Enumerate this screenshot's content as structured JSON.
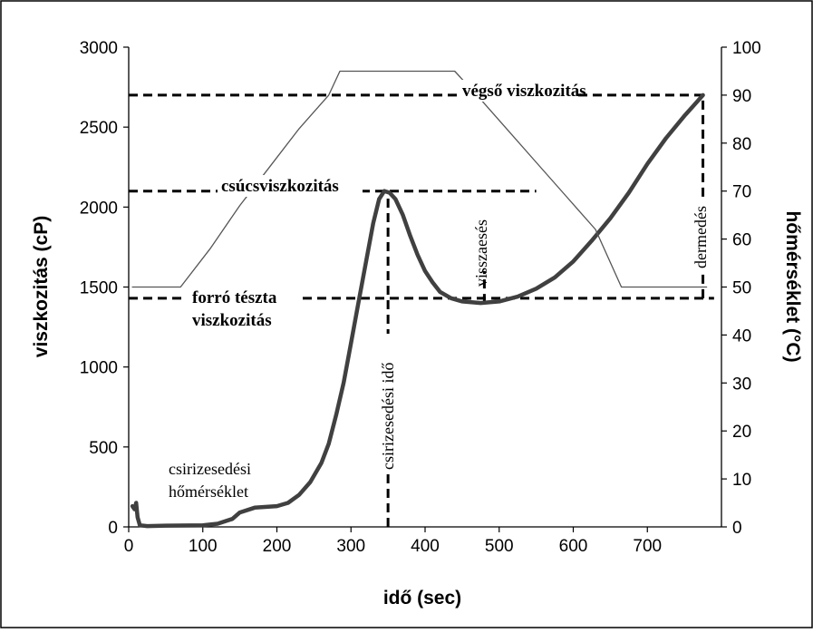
{
  "chart_data": {
    "type": "line",
    "xlabel": "idő (sec)",
    "ylabel": "viszkozitás (cP)",
    "y2label": "hőmérséklet (°C)",
    "xlim": [
      0,
      800
    ],
    "ylim": [
      0,
      3000
    ],
    "y2lim": [
      0,
      100
    ],
    "x_ticks": [
      "0",
      "100",
      "200",
      "300",
      "400",
      "500",
      "600",
      "700"
    ],
    "y_ticks": [
      "0",
      "500",
      "1000",
      "1500",
      "2000",
      "2500",
      "3000"
    ],
    "y2_ticks": [
      "0",
      "10",
      "20",
      "30",
      "40",
      "50",
      "60",
      "70",
      "80",
      "90",
      "100"
    ],
    "grid": false,
    "series": [
      {
        "axis": "left",
        "color": "#404040",
        "points": [
          [
            5,
            130
          ],
          [
            8,
            110
          ],
          [
            10,
            150
          ],
          [
            12,
            60
          ],
          [
            15,
            10
          ],
          [
            25,
            5
          ],
          [
            50,
            8
          ],
          [
            100,
            10
          ],
          [
            120,
            20
          ],
          [
            140,
            50
          ],
          [
            150,
            90
          ],
          [
            170,
            120
          ],
          [
            200,
            130
          ],
          [
            215,
            150
          ],
          [
            230,
            200
          ],
          [
            245,
            280
          ],
          [
            260,
            400
          ],
          [
            270,
            520
          ],
          [
            280,
            700
          ],
          [
            290,
            900
          ],
          [
            300,
            1150
          ],
          [
            310,
            1400
          ],
          [
            320,
            1650
          ],
          [
            330,
            1900
          ],
          [
            338,
            2050
          ],
          [
            345,
            2100
          ],
          [
            352,
            2090
          ],
          [
            360,
            2050
          ],
          [
            370,
            1950
          ],
          [
            380,
            1820
          ],
          [
            390,
            1700
          ],
          [
            400,
            1600
          ],
          [
            410,
            1530
          ],
          [
            420,
            1470
          ],
          [
            435,
            1430
          ],
          [
            450,
            1410
          ],
          [
            475,
            1400
          ],
          [
            500,
            1410
          ],
          [
            525,
            1440
          ],
          [
            550,
            1490
          ],
          [
            575,
            1560
          ],
          [
            600,
            1660
          ],
          [
            625,
            1790
          ],
          [
            650,
            1930
          ],
          [
            675,
            2090
          ],
          [
            700,
            2270
          ],
          [
            725,
            2430
          ],
          [
            750,
            2570
          ],
          [
            775,
            2700
          ]
        ]
      },
      {
        "axis": "right",
        "color": "#555555",
        "points": [
          [
            5,
            50
          ],
          [
            40,
            50
          ],
          [
            70,
            50
          ],
          [
            110,
            58
          ],
          [
            150,
            67
          ],
          [
            190,
            75
          ],
          [
            230,
            83
          ],
          [
            270,
            90
          ],
          [
            285,
            95
          ],
          [
            440,
            95
          ],
          [
            470,
            90
          ],
          [
            510,
            83
          ],
          [
            550,
            76
          ],
          [
            590,
            69
          ],
          [
            630,
            62
          ],
          [
            665,
            50
          ],
          [
            780,
            50
          ]
        ]
      }
    ],
    "annotations": [
      {
        "label": "végső viszkozitás",
        "style": "bold"
      },
      {
        "label": "csúcsviszkozitás",
        "style": "bold"
      },
      {
        "label": "forró tészta",
        "style": "bold"
      },
      {
        "label": "viszkozitás",
        "style": "bold"
      },
      {
        "label": "csirizesedési",
        "style": "normal"
      },
      {
        "label": "hőmérséklet",
        "style": "normal"
      },
      {
        "label": "csirizesedési idő",
        "style": "normal"
      },
      {
        "label": "visszaesés",
        "style": "normal"
      },
      {
        "label": "dermedés",
        "style": "normal"
      }
    ],
    "reference_lines": [
      {
        "kind": "h",
        "y": 2700,
        "x_from": 0,
        "x_to": 775
      },
      {
        "kind": "v",
        "x": 775,
        "y_from": 1430,
        "y_to": 2700
      },
      {
        "kind": "h",
        "y": 2100,
        "x_from": 0,
        "x_to": 550
      },
      {
        "kind": "v",
        "x": 350,
        "y_from": 0,
        "y_to": 2100
      },
      {
        "kind": "h",
        "y": 1430,
        "x_from": 0,
        "x_to": 790
      },
      {
        "kind": "v",
        "x": 480,
        "y_from": 1400,
        "y_to": 1600
      }
    ]
  }
}
